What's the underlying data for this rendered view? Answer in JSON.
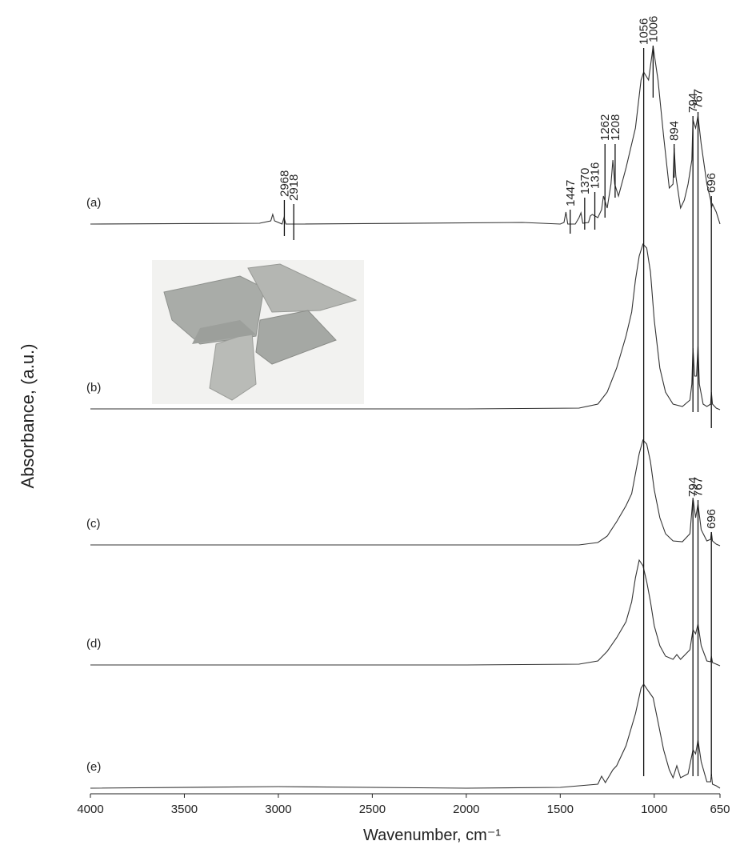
{
  "chart_data": {
    "type": "line",
    "xlabel": "Wavenumber, cm⁻¹",
    "ylabel": "Absorbance, (a.u.)",
    "xlim": [
      4000,
      650
    ],
    "ylim": [
      0,
      952
    ],
    "xticks": [
      4000,
      3500,
      3000,
      2500,
      2000,
      1500,
      1000,
      650
    ],
    "color": "#333333",
    "series": [
      {
        "name": "(a)",
        "x": [
          4000,
          3100,
          3040,
          3030,
          3020,
          2980,
          2970,
          2960,
          2900,
          1700,
          1500,
          1480,
          1470,
          1460,
          1420,
          1400,
          1390,
          1380,
          1350,
          1340,
          1330,
          1300,
          1280,
          1270,
          1250,
          1230,
          1220,
          1210,
          1190,
          1150,
          1100,
          1070,
          1056,
          1030,
          1006,
          980,
          950,
          920,
          900,
          894,
          885,
          860,
          840,
          820,
          800,
          794,
          780,
          767,
          750,
          720,
          700,
          696,
          690,
          670,
          650
        ],
        "values": [
          712,
          713,
          716,
          724,
          716,
          712,
          720,
          712,
          712,
          714,
          712,
          714,
          727,
          712,
          712,
          720,
          726,
          713,
          714,
          722,
          724,
          720,
          730,
          747,
          732,
          762,
          792,
          762,
          747,
          782,
          832,
          892,
          902,
          892,
          934,
          892,
          822,
          757,
          762,
          807,
          772,
          732,
          742,
          762,
          792,
          842,
          832,
          847,
          812,
          762,
          742,
          732,
          737,
          727,
          712
        ]
      },
      {
        "name": "(b)",
        "x": [
          4000,
          2000,
          1400,
          1300,
          1250,
          1200,
          1150,
          1120,
          1100,
          1080,
          1060,
          1040,
          1020,
          1000,
          970,
          940,
          900,
          850,
          810,
          800,
          794,
          785,
          775,
          767,
          760,
          740,
          720,
          700,
          696,
          690,
          670,
          650
        ],
        "values": [
          481,
          481,
          482,
          487,
          502,
          532,
          572,
          602,
          642,
          672,
          687,
          682,
          652,
          592,
          532,
          502,
          487,
          484,
          492,
          512,
          557,
          522,
          522,
          559,
          512,
          487,
          484,
          487,
          502,
          487,
          482,
          480
        ]
      },
      {
        "name": "(c)",
        "x": [
          4000,
          2000,
          1400,
          1300,
          1250,
          1200,
          1150,
          1120,
          1100,
          1080,
          1060,
          1040,
          1020,
          1000,
          970,
          940,
          900,
          850,
          810,
          794,
          780,
          767,
          750,
          720,
          700,
          696,
          690,
          670,
          650
        ],
        "values": [
          311,
          311,
          311,
          314,
          322,
          340,
          360,
          375,
          400,
          425,
          442,
          437,
          415,
          380,
          345,
          325,
          316,
          315,
          325,
          370,
          345,
          362,
          330,
          316,
          318,
          327,
          316,
          312,
          310
        ]
      },
      {
        "name": "(d)",
        "x": [
          4000,
          2000,
          1400,
          1300,
          1250,
          1200,
          1150,
          1120,
          1100,
          1080,
          1060,
          1040,
          1020,
          1000,
          970,
          940,
          900,
          880,
          860,
          810,
          794,
          780,
          767,
          750,
          720,
          700,
          696,
          690,
          670,
          650
        ],
        "values": [
          161,
          161,
          162,
          166,
          178,
          195,
          215,
          240,
          270,
          292,
          285,
          265,
          240,
          210,
          185,
          172,
          168,
          174,
          168,
          180,
          205,
          200,
          212,
          185,
          166,
          165,
          172,
          164,
          162,
          160
        ]
      },
      {
        "name": "(e)",
        "x": [
          4000,
          3000,
          2000,
          1500,
          1300,
          1280,
          1260,
          1220,
          1200,
          1150,
          1100,
          1070,
          1056,
          1030,
          1006,
          980,
          950,
          920,
          900,
          880,
          860,
          820,
          794,
          780,
          767,
          750,
          720,
          700,
          696,
          690,
          670,
          650
        ],
        "values": [
          7,
          9,
          7,
          8,
          12,
          22,
          14,
          30,
          35,
          60,
          100,
          132,
          137,
          128,
          120,
          90,
          55,
          30,
          20,
          35,
          20,
          25,
          55,
          50,
          67,
          40,
          15,
          15,
          25,
          12,
          10,
          7
        ]
      }
    ],
    "annotations": [
      {
        "label": "2968",
        "x": 2968,
        "y": [
          697,
          742
        ]
      },
      {
        "label": "2918",
        "x": 2918,
        "y": [
          692,
          737
        ]
      },
      {
        "label": "1447",
        "x": 1447,
        "y": [
          700,
          730
        ]
      },
      {
        "label": "1370",
        "x": 1370,
        "y": [
          705,
          745
        ]
      },
      {
        "label": "1316",
        "x": 1316,
        "y": [
          705,
          752
        ]
      },
      {
        "label": "1262",
        "x": 1262,
        "y": [
          720,
          812
        ]
      },
      {
        "label": "1208",
        "x": 1208,
        "y": [
          745,
          812
        ]
      },
      {
        "label": "1056",
        "x": 1056,
        "y": [
          22,
          932
        ]
      },
      {
        "label": "1006",
        "x": 1006,
        "y": [
          870,
          935
        ]
      },
      {
        "label": "894",
        "x": 894,
        "y": [
          770,
          812
        ]
      },
      {
        "label": "794",
        "x": 794,
        "y": [
          477,
          847
        ]
      },
      {
        "label": "767",
        "x": 767,
        "y": [
          477,
          852
        ]
      },
      {
        "label": "696",
        "x": 696,
        "y": [
          457,
          747
        ]
      },
      {
        "label": "794",
        "x": 794,
        "y": [
          22,
          367
        ]
      },
      {
        "label": "767",
        "x": 767,
        "y": [
          22,
          367
        ]
      },
      {
        "label": "696",
        "x": 696,
        "y": [
          22,
          327
        ]
      }
    ]
  }
}
